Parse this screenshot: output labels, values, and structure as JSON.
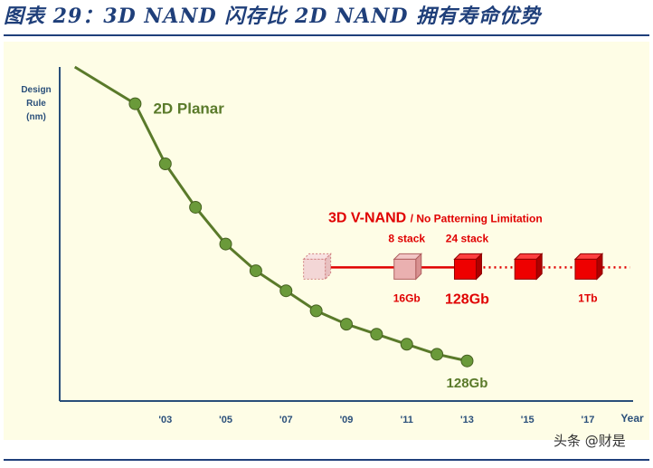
{
  "title": "图表 29：3D NAND 闪存比 2D NAND 拥有寿命优势",
  "watermark": "头条 @财是",
  "colors": {
    "title": "#1f3f7a",
    "planar": "#5a7a2a",
    "planar_dot": "#6a9a3a",
    "vnand": "#e00000",
    "vnand_light": "#e8a0a0",
    "axis": "#2a4f7a"
  },
  "chart_data": {
    "type": "line",
    "title": "",
    "xlabel": "Year",
    "ylabel": "Design Rule (nm)",
    "ylabel_lines": [
      "Design",
      "Rule",
      "(nm)"
    ],
    "xlim": [
      1999.5,
      2018.5
    ],
    "ylim": [
      0,
      100
    ],
    "x_ticks": [
      "'03",
      "'05",
      "'07",
      "'09",
      "'11",
      "'13",
      "'15",
      "'17"
    ],
    "x_tick_values": [
      2003,
      2005,
      2007,
      2009,
      2011,
      2013,
      2015,
      2017
    ],
    "series": [
      {
        "name": "2D Planar",
        "x": [
          2002,
          2003,
          2004,
          2005,
          2006,
          2007,
          2008,
          2009,
          2010,
          2011,
          2012,
          2013
        ],
        "y": [
          89,
          71,
          58,
          47,
          39,
          33,
          27,
          23,
          20,
          17,
          14,
          12
        ],
        "end_label": "128Gb"
      }
    ],
    "vnand": {
      "label": "3D V-NAND",
      "sublabel": "/ No Patterning Limitation",
      "level": 40,
      "line_from": 2008,
      "solid_to": 2013,
      "dotted_to": 2018.4,
      "cubes": [
        {
          "x": 2008,
          "style": "ghost",
          "top": "",
          "bottom": ""
        },
        {
          "x": 2011,
          "style": "light",
          "top": "8 stack",
          "bottom": "16Gb"
        },
        {
          "x": 2013,
          "style": "solid",
          "top": "24 stack",
          "bottom": "128Gb"
        },
        {
          "x": 2015,
          "style": "solid",
          "top": "",
          "bottom": ""
        },
        {
          "x": 2017,
          "style": "solid",
          "top": "",
          "bottom": "1Tb"
        }
      ]
    }
  }
}
